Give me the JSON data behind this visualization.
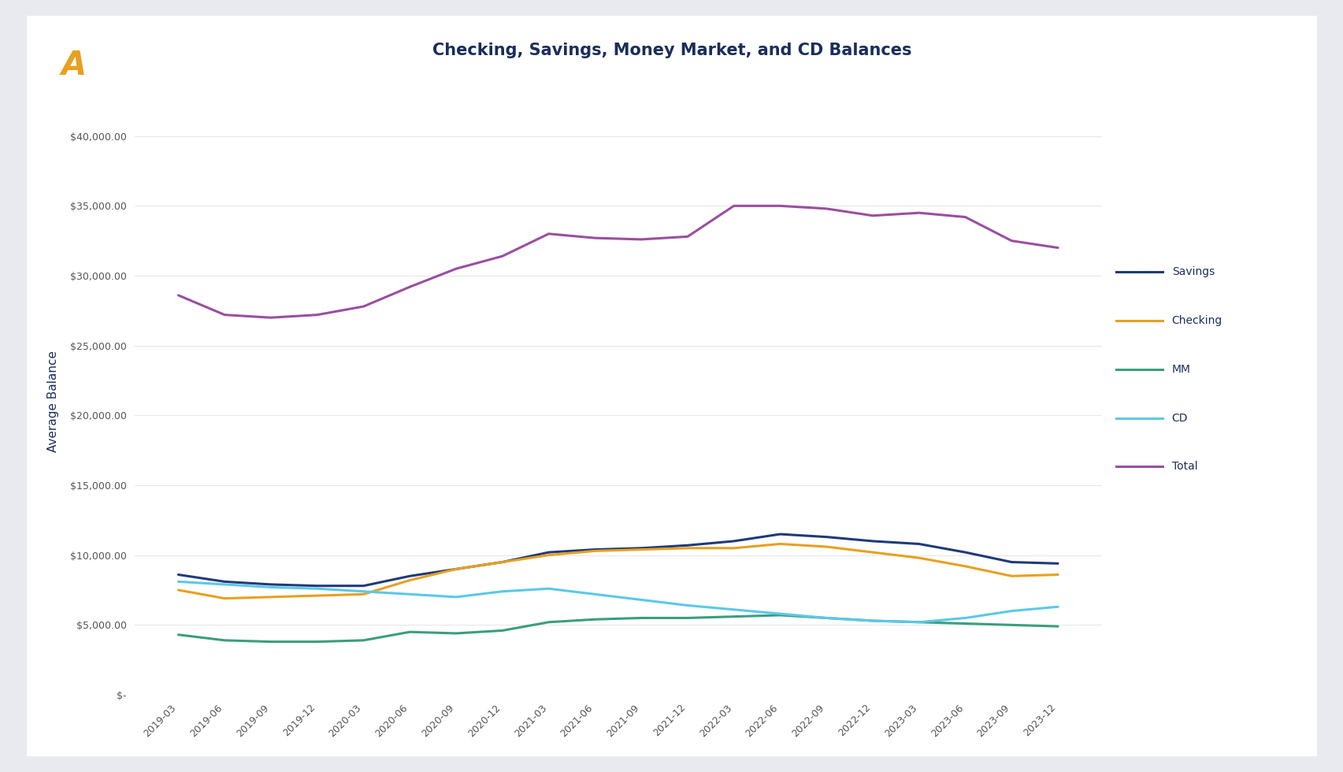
{
  "title": "Checking, Savings, Money Market, and CD Balances",
  "ylabel": "Average Balance",
  "title_color": "#1a2e5a",
  "axis_label_color": "#1a2e5a",
  "tick_color": "#555555",
  "grid_color": "#e8e8e8",
  "outer_bg": "#e8eaef",
  "card_bg": "#ffffff",
  "x_labels": [
    "2019-03",
    "2019-06",
    "2019-09",
    "2019-12",
    "2020-03",
    "2020-06",
    "2020-09",
    "2020-12",
    "2021-03",
    "2021-06",
    "2021-09",
    "2021-12",
    "2022-03",
    "2022-06",
    "2022-09",
    "2022-12",
    "2023-03",
    "2023-06",
    "2023-09",
    "2023-12"
  ],
  "series": {
    "Savings": {
      "color": "#1f3a7a",
      "values": [
        8600,
        8100,
        7900,
        7800,
        7800,
        8500,
        9000,
        9500,
        10200,
        10400,
        10500,
        10700,
        11000,
        11500,
        11300,
        11000,
        10800,
        10200,
        9500,
        9400
      ]
    },
    "Checking": {
      "color": "#e8a020",
      "values": [
        7500,
        6900,
        7000,
        7100,
        7200,
        8200,
        9000,
        9500,
        10000,
        10300,
        10400,
        10500,
        10500,
        10800,
        10600,
        10200,
        9800,
        9200,
        8500,
        8600
      ]
    },
    "MM": {
      "color": "#3a9e7e",
      "values": [
        4300,
        3900,
        3800,
        3800,
        3900,
        4500,
        4400,
        4600,
        5200,
        5400,
        5500,
        5500,
        5600,
        5700,
        5500,
        5300,
        5200,
        5100,
        5000,
        4900
      ]
    },
    "CD": {
      "color": "#5bc8e8",
      "values": [
        8100,
        7900,
        7700,
        7600,
        7400,
        7200,
        7000,
        7400,
        7600,
        7200,
        6800,
        6400,
        6100,
        5800,
        5500,
        5300,
        5200,
        5500,
        6000,
        6300
      ]
    },
    "Total": {
      "color": "#9b4ea0",
      "values": [
        28600,
        27200,
        27000,
        27200,
        27800,
        29200,
        30500,
        31400,
        33000,
        32700,
        32600,
        32800,
        35000,
        35000,
        34800,
        34300,
        34500,
        34200,
        32500,
        32000
      ]
    }
  },
  "ylim": [
    0,
    42000
  ],
  "yticks": [
    0,
    5000,
    10000,
    15000,
    20000,
    25000,
    30000,
    35000,
    40000
  ],
  "legend_order": [
    "Savings",
    "Checking",
    "MM",
    "CD",
    "Total"
  ],
  "logo_color": "#e8a020",
  "line_width": 2.2
}
